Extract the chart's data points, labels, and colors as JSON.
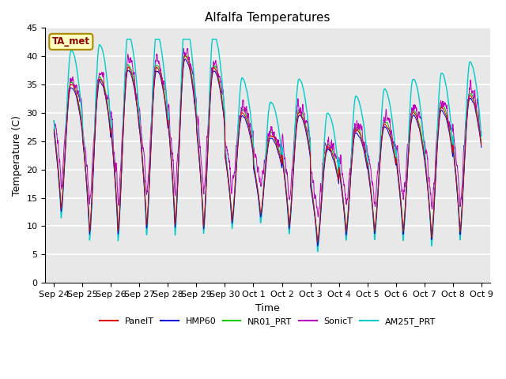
{
  "title": "Alfalfa Temperatures",
  "xlabel": "Time",
  "ylabel": "Temperature (C)",
  "ylim": [
    0,
    45
  ],
  "yticks": [
    0,
    5,
    10,
    15,
    20,
    25,
    30,
    35,
    40,
    45
  ],
  "plot_bg": "#e8e8e8",
  "grid_color": "white",
  "annotation_text": "TA_met",
  "annotation_color": "#8b0000",
  "annotation_bg": "#ffffc0",
  "colors": {
    "PanelT": "#dd0000",
    "HMP60": "#0000dd",
    "NR01_PRT": "#00cc00",
    "SonicT": "#bb00bb",
    "AM25T_PRT": "#00cccc"
  },
  "x_tick_labels": [
    "Sep 24",
    "Sep 25",
    "Sep 26",
    "Sep 27",
    "Sep 28",
    "Sep 29",
    "Sep 30",
    "Oct 1",
    "Oct 2",
    "Oct 3",
    "Oct 4",
    "Oct 5",
    "Oct 6",
    "Oct 7",
    "Oct 8",
    "Oct 9"
  ],
  "n_points": 2000
}
